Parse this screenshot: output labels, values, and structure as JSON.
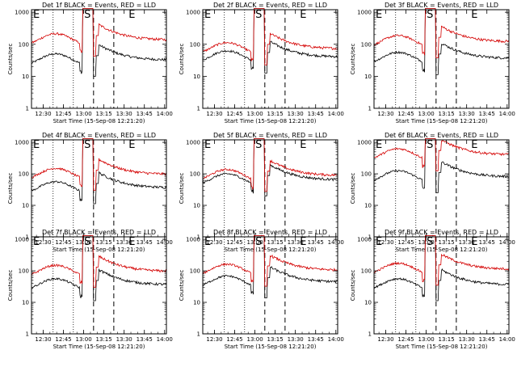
{
  "chart_data": [
    {
      "type": "line",
      "title": "Det 1f BLACK = Events, RED = LLD",
      "xlabel": "Start Time (15-Sep-08 12:21:20)",
      "ylabel": "Counts/sec",
      "x_ticks": [
        "12:30",
        "12:45",
        "13:00",
        "13:15",
        "13:30",
        "13:45",
        "14:00"
      ],
      "x_tick_minutes": [
        8.67,
        23.67,
        38.67,
        53.67,
        68.67,
        83.67,
        98.67
      ],
      "xlim_minutes": [
        0,
        100
      ],
      "y_ticks": [
        "1",
        "10",
        "100",
        "1000"
      ],
      "ylim": [
        1,
        1200
      ],
      "yscale": "log",
      "markers": [
        "E",
        "S",
        "E"
      ],
      "series": [
        {
          "name": "BLACK",
          "color": "#000000",
          "base": 40
        },
        {
          "name": "RED",
          "color": "#d40000",
          "base": 170
        }
      ],
      "dotted_lines": [
        16,
        31
      ],
      "dashed_lines": [
        46,
        61
      ]
    },
    {
      "type": "line",
      "title": "Det 2f BLACK = Events, RED = LLD",
      "xlabel": "Start Time (15-Sep-08 12:21:20)",
      "ylabel": "Counts/sec",
      "x_ticks": [
        "12:30",
        "12:45",
        "13:00",
        "13:15",
        "13:30",
        "13:45",
        "14:00"
      ],
      "x_tick_minutes": [
        8.67,
        23.67,
        38.67,
        53.67,
        68.67,
        83.67,
        98.67
      ],
      "xlim_minutes": [
        0,
        100
      ],
      "y_ticks": [
        "1",
        "10",
        "100",
        "1000"
      ],
      "ylim": [
        1,
        1200
      ],
      "yscale": "log",
      "markers": [
        "E",
        "S",
        "E"
      ],
      "series": [
        {
          "name": "BLACK",
          "color": "#000000",
          "base": 50
        },
        {
          "name": "RED",
          "color": "#d40000",
          "base": 90
        }
      ],
      "dotted_lines": [
        16,
        31
      ],
      "dashed_lines": [
        46,
        61
      ]
    },
    {
      "type": "line",
      "title": "Det 3f BLACK = Events, RED = LLD",
      "xlabel": "Start Time (15-Sep-08 12:21:20)",
      "ylabel": "Counts/sec",
      "x_ticks": [
        "12:30",
        "12:45",
        "13:00",
        "13:15",
        "13:30",
        "13:45",
        "14:00"
      ],
      "x_tick_minutes": [
        8.67,
        23.67,
        38.67,
        53.67,
        68.67,
        83.67,
        98.67
      ],
      "xlim_minutes": [
        0,
        100
      ],
      "y_ticks": [
        "1",
        "10",
        "100",
        "1000"
      ],
      "ylim": [
        1,
        1200
      ],
      "yscale": "log",
      "markers": [
        "E",
        "S",
        "E"
      ],
      "series": [
        {
          "name": "BLACK",
          "color": "#000000",
          "base": 45
        },
        {
          "name": "RED",
          "color": "#d40000",
          "base": 150
        }
      ],
      "dotted_lines": [
        16,
        31
      ],
      "dashed_lines": [
        46,
        61
      ]
    },
    {
      "type": "line",
      "title": "Det 4f BLACK = Events, RED = LLD",
      "xlabel": "Start Time (15-Sep-08 12:21:20)",
      "ylabel": "Counts/sec",
      "x_ticks": [
        "12:30",
        "12:45",
        "13:00",
        "13:15",
        "13:30",
        "13:45",
        "14:00"
      ],
      "x_tick_minutes": [
        8.67,
        23.67,
        38.67,
        53.67,
        68.67,
        83.67,
        98.67
      ],
      "xlim_minutes": [
        0,
        100
      ],
      "y_ticks": [
        "1",
        "10",
        "100",
        "1000"
      ],
      "ylim": [
        1,
        1200
      ],
      "yscale": "log",
      "markers": [
        "E",
        "S",
        "E"
      ],
      "series": [
        {
          "name": "BLACK",
          "color": "#000000",
          "base": 45
        },
        {
          "name": "RED",
          "color": "#d40000",
          "base": 120
        }
      ],
      "dotted_lines": [
        16,
        31
      ],
      "dashed_lines": [
        46,
        61
      ]
    },
    {
      "type": "line",
      "title": "Det 5f BLACK = Events, RED = LLD",
      "xlabel": "Start Time (15-Sep-08 12:21:20)",
      "ylabel": "Counts/sec",
      "x_ticks": [
        "12:30",
        "12:45",
        "13:00",
        "13:15",
        "13:30",
        "13:45",
        "14:00"
      ],
      "x_tick_minutes": [
        8.67,
        23.67,
        38.67,
        53.67,
        68.67,
        83.67,
        98.67
      ],
      "xlim_minutes": [
        0,
        100
      ],
      "y_ticks": [
        "1",
        "10",
        "100",
        "1000"
      ],
      "ylim": [
        1,
        1200
      ],
      "yscale": "log",
      "markers": [
        "E",
        "S",
        "E"
      ],
      "series": [
        {
          "name": "BLACK",
          "color": "#000000",
          "base": 80
        },
        {
          "name": "RED",
          "color": "#d40000",
          "base": 110
        }
      ],
      "dotted_lines": [
        16,
        31
      ],
      "dashed_lines": [
        46,
        61
      ]
    },
    {
      "type": "line",
      "title": "Det 6f BLACK = Events, RED = LLD",
      "xlabel": "Start Time (15-Sep-08 12:21:20)",
      "ylabel": "Counts/sec",
      "x_ticks": [
        "12:30",
        "12:45",
        "13:00",
        "13:15",
        "13:30",
        "13:45",
        "14:00"
      ],
      "x_tick_minutes": [
        8.67,
        23.67,
        38.67,
        53.67,
        68.67,
        83.67,
        98.67
      ],
      "xlim_minutes": [
        0,
        100
      ],
      "y_ticks": [
        "1",
        "10",
        "100",
        "1000"
      ],
      "ylim": [
        1,
        1200
      ],
      "yscale": "log",
      "markers": [
        "E",
        "S",
        "E"
      ],
      "series": [
        {
          "name": "BLACK",
          "color": "#000000",
          "base": 100
        },
        {
          "name": "RED",
          "color": "#d40000",
          "base": 500
        }
      ],
      "dotted_lines": [
        16,
        31
      ],
      "dashed_lines": [
        46,
        61
      ]
    },
    {
      "type": "line",
      "title": "Det 7f BLACK = Events, RED = LLD",
      "xlabel": "Start Time (15-Sep-08 12:21:20)",
      "ylabel": "Counts/sec",
      "x_ticks": [
        "12:30",
        "12:45",
        "13:00",
        "13:15",
        "13:30",
        "13:45",
        "14:00"
      ],
      "x_tick_minutes": [
        8.67,
        23.67,
        38.67,
        53.67,
        68.67,
        83.67,
        98.67
      ],
      "xlim_minutes": [
        0,
        100
      ],
      "y_ticks": [
        "1",
        "10",
        "100",
        "1000"
      ],
      "ylim": [
        1,
        1200
      ],
      "yscale": "log",
      "markers": [
        "E",
        "S",
        "E"
      ],
      "series": [
        {
          "name": "BLACK",
          "color": "#000000",
          "base": 45
        },
        {
          "name": "RED",
          "color": "#d40000",
          "base": 120
        }
      ],
      "dotted_lines": [
        16,
        31
      ],
      "dashed_lines": [
        46,
        61
      ]
    },
    {
      "type": "line",
      "title": "Det 8f BLACK = Events, RED = LLD",
      "xlabel": "Start Time (15-Sep-08 12:21:20)",
      "ylabel": "Counts/sec",
      "x_ticks": [
        "12:30",
        "12:45",
        "13:00",
        "13:15",
        "13:30",
        "13:45",
        "14:00"
      ],
      "x_tick_minutes": [
        8.67,
        23.67,
        38.67,
        53.67,
        68.67,
        83.67,
        98.67
      ],
      "xlim_minutes": [
        0,
        100
      ],
      "y_ticks": [
        "1",
        "10",
        "100",
        "1000"
      ],
      "ylim": [
        1,
        1200
      ],
      "yscale": "log",
      "markers": [
        "E",
        "S",
        "E"
      ],
      "series": [
        {
          "name": "BLACK",
          "color": "#000000",
          "base": 55
        },
        {
          "name": "RED",
          "color": "#d40000",
          "base": 130
        }
      ],
      "dotted_lines": [
        16,
        31
      ],
      "dashed_lines": [
        46,
        61
      ]
    },
    {
      "type": "line",
      "title": "Det 9f BLACK = Events, RED = LLD",
      "xlabel": "Start Time (15-Sep-08 12:21:20)",
      "ylabel": "Counts/sec",
      "x_ticks": [
        "12:30",
        "12:45",
        "13:00",
        "13:15",
        "13:30",
        "13:45",
        "14:00"
      ],
      "x_tick_minutes": [
        8.67,
        23.67,
        38.67,
        53.67,
        68.67,
        83.67,
        98.67
      ],
      "xlim_minutes": [
        0,
        100
      ],
      "y_ticks": [
        "1",
        "10",
        "100",
        "1000"
      ],
      "ylim": [
        1,
        1200
      ],
      "yscale": "log",
      "markers": [
        "E",
        "S",
        "E"
      ],
      "series": [
        {
          "name": "BLACK",
          "color": "#000000",
          "base": 45
        },
        {
          "name": "RED",
          "color": "#d40000",
          "base": 140
        }
      ],
      "dotted_lines": [
        16,
        31
      ],
      "dashed_lines": [
        46,
        61
      ]
    }
  ]
}
